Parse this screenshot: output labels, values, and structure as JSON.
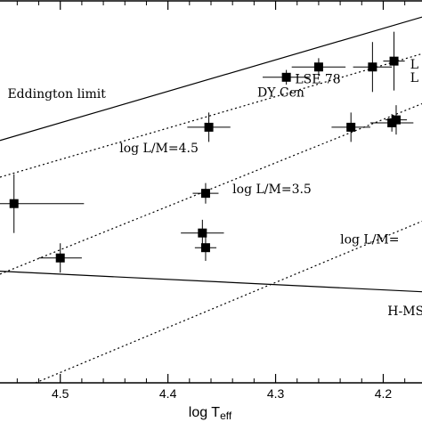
{
  "chart_data": {
    "type": "scatter",
    "xlabel": "log T",
    "xlabel_sub": "eff",
    "xlim": [
      4.556,
      4.164
    ],
    "ylim": [
      3.0,
      5.6
    ],
    "x_inverted": true,
    "ytick_labels_visible": false,
    "x_ticks": [
      {
        "value": 4.5,
        "label": "4.5"
      },
      {
        "value": 4.4,
        "label": "4.4"
      },
      {
        "value": 4.3,
        "label": "4.3"
      },
      {
        "value": 4.2,
        "label": "4.2"
      }
    ],
    "lines": [
      {
        "label": "Eddington limit",
        "style": "solid",
        "points": [
          [
            4.556,
            4.65
          ],
          [
            4.164,
            5.49
          ]
        ]
      },
      {
        "label": "log L/M=4.5",
        "style": "dotted",
        "points": [
          [
            4.556,
            4.4
          ],
          [
            4.164,
            5.24
          ]
        ]
      },
      {
        "label": "log L/M=3.5",
        "style": "dotted",
        "points": [
          [
            4.556,
            3.74
          ],
          [
            4.164,
            4.9
          ]
        ]
      },
      {
        "label": "",
        "style": "dotted",
        "points": [
          [
            4.523,
            3.0
          ],
          [
            4.164,
            4.1
          ]
        ]
      },
      {
        "label": "H-MS",
        "style": "solid",
        "points": [
          [
            4.556,
            3.76
          ],
          [
            4.164,
            3.62
          ]
        ]
      }
    ],
    "points": [
      {
        "x": 4.543,
        "y": 4.22,
        "xerr": 0.065,
        "yerr": 0.2
      },
      {
        "x": 4.5,
        "y": 3.85,
        "xerr": 0.02,
        "yerr": 0.1
      },
      {
        "x": 4.362,
        "y": 4.74,
        "xerr": 0.02,
        "yerr": 0.1
      },
      {
        "x": 4.365,
        "y": 4.29,
        "xerr": 0.012,
        "yerr": 0.07
      },
      {
        "x": 4.368,
        "y": 4.02,
        "xerr": 0.02,
        "yerr": 0.09
      },
      {
        "x": 4.365,
        "y": 3.92,
        "xerr": 0.01,
        "yerr": 0.09
      },
      {
        "x": 4.29,
        "y": 5.08,
        "xerr": 0.022,
        "yerr": 0.05
      },
      {
        "x": 4.26,
        "y": 5.15,
        "xerr": 0.025,
        "yerr": 0.06
      },
      {
        "x": 4.23,
        "y": 4.74,
        "xerr": 0.018,
        "yerr": 0.1
      },
      {
        "x": 4.21,
        "y": 5.15,
        "xerr": 0.018,
        "yerr": 0.17
      },
      {
        "x": 4.19,
        "y": 5.19,
        "xerr": 0.01,
        "yerr": 0.2
      },
      {
        "x": 4.192,
        "y": 4.77,
        "xerr": 0.02,
        "yerr": 0.06
      },
      {
        "x": 4.188,
        "y": 4.79,
        "xerr": 0.01,
        "yerr": 0.1
      }
    ],
    "annotations": [
      {
        "text": "Eddington limit",
        "x": 4.549,
        "y": 4.94,
        "kind": "line-label"
      },
      {
        "text": "log L/M=4.5",
        "x": 4.445,
        "y": 4.57,
        "kind": "line-label"
      },
      {
        "text": "log L/M=3.5",
        "x": 4.34,
        "y": 4.29,
        "kind": "line-label"
      },
      {
        "text": "log L/M=",
        "x": 4.24,
        "y": 3.95,
        "kind": "line-label"
      },
      {
        "text": "H-MS",
        "x": 4.196,
        "y": 3.46,
        "kind": "line-label"
      },
      {
        "text": "DY Cen",
        "x": 4.317,
        "y": 4.95,
        "kind": "star-label"
      },
      {
        "text": "LSE 78",
        "x": 4.282,
        "y": 5.04,
        "kind": "star-label"
      },
      {
        "text": "L",
        "x": 4.175,
        "y": 5.14,
        "kind": "star-label"
      },
      {
        "text": "L",
        "x": 4.175,
        "y": 5.05,
        "kind": "star-label"
      }
    ]
  }
}
